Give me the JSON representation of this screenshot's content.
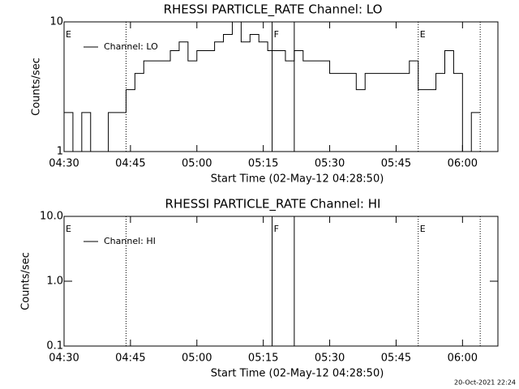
{
  "chart_data": [
    {
      "type": "line",
      "title": "RHESSI PARTICLE_RATE Channel: LO",
      "xlabel": "Start Time (02-May-12 04:28:50)",
      "ylabel": "Counts/sec",
      "log_y": true,
      "legend": "upper left",
      "xlim": [
        "04:30",
        "06:08"
      ],
      "xticks": [
        "04:30",
        "04:45",
        "05:00",
        "05:15",
        "05:30",
        "05:45",
        "06:00"
      ],
      "ylim": [
        1,
        10
      ],
      "yticks": [
        1,
        10
      ],
      "x": [
        "04:30",
        "04:32",
        "04:34",
        "04:36",
        "04:38",
        "04:40",
        "04:42",
        "04:44",
        "04:46",
        "04:48",
        "04:50",
        "04:52",
        "04:54",
        "04:56",
        "04:58",
        "05:00",
        "05:02",
        "05:04",
        "05:06",
        "05:08",
        "05:10",
        "05:12",
        "05:14",
        "05:16",
        "05:18",
        "05:20",
        "05:22",
        "05:24",
        "05:26",
        "05:28",
        "05:30",
        "05:32",
        "05:34",
        "05:36",
        "05:38",
        "05:40",
        "05:42",
        "05:44",
        "05:46",
        "05:48",
        "05:50",
        "05:52",
        "05:54",
        "05:56",
        "05:58",
        "06:00",
        "06:02"
      ],
      "series": [
        {
          "name": "Channel: LO",
          "color": "#000000",
          "values": [
            2,
            1,
            2,
            1,
            1,
            2,
            2,
            3,
            4,
            5,
            5,
            5,
            6,
            7,
            5,
            6,
            6,
            7,
            8,
            10,
            7,
            8,
            7,
            6,
            6,
            5,
            6,
            5,
            5,
            5,
            4,
            4,
            4,
            3,
            4,
            4,
            4,
            4,
            4,
            5,
            3,
            3,
            4,
            6,
            4,
            1,
            2
          ]
        }
      ],
      "markers": [
        {
          "x": "04:44",
          "style": "dotted"
        },
        {
          "x": "05:17",
          "style": "solid"
        },
        {
          "x": "05:22",
          "style": "solid"
        },
        {
          "x": "05:50",
          "style": "dotted"
        },
        {
          "x": "06:04",
          "style": "dotted"
        }
      ],
      "flags": [
        {
          "x": "04:30",
          "label": "E"
        },
        {
          "x": "05:17",
          "label": "F"
        },
        {
          "x": "05:50",
          "label": "E"
        }
      ]
    },
    {
      "type": "line",
      "title": "RHESSI PARTICLE_RATE Channel: HI",
      "xlabel": "Start Time (02-May-12 04:28:50)",
      "ylabel": "Counts/sec",
      "log_y": true,
      "legend": "upper left",
      "xlim": [
        "04:30",
        "06:08"
      ],
      "xticks": [
        "04:30",
        "04:45",
        "05:00",
        "05:15",
        "05:30",
        "05:45",
        "06:00"
      ],
      "ylim": [
        0.1,
        10
      ],
      "yticks": [
        0.1,
        {
          "value": 1,
          "label": "1.0"
        },
        {
          "value": 10,
          "label": "10.0"
        }
      ],
      "x": [],
      "series": [
        {
          "name": "Channel: HI",
          "color": "#000000",
          "values": []
        }
      ],
      "markers": [
        {
          "x": "04:44",
          "style": "dotted"
        },
        {
          "x": "05:17",
          "style": "solid"
        },
        {
          "x": "05:22",
          "style": "solid"
        },
        {
          "x": "05:50",
          "style": "dotted"
        },
        {
          "x": "06:04",
          "style": "dotted"
        }
      ],
      "flags": [
        {
          "x": "04:30",
          "label": "E"
        },
        {
          "x": "05:17",
          "label": "F"
        },
        {
          "x": "05:50",
          "label": "E"
        }
      ]
    }
  ],
  "footer": "20-Oct-2021 22:24"
}
